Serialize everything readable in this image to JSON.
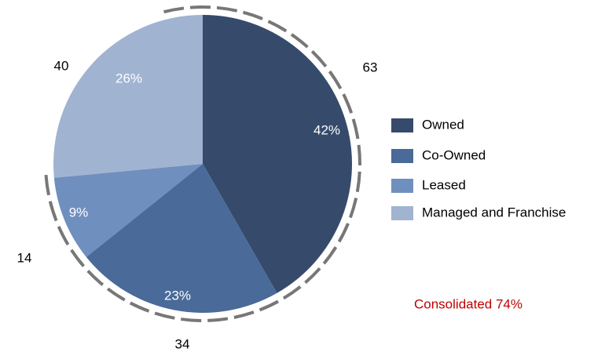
{
  "chart_data": {
    "type": "pie",
    "categories": [
      "Owned",
      "Co-Owned",
      "Leased",
      "Managed and Franchise"
    ],
    "values": [
      63,
      34,
      14,
      40
    ],
    "share_labels": [
      "42%",
      "23%",
      "9%",
      "26%"
    ],
    "colors": [
      "#364b6b",
      "#4a6a99",
      "#6f8fbf",
      "#a0b3d1"
    ],
    "annotation": "Consolidated 74%",
    "legend": "right"
  }
}
